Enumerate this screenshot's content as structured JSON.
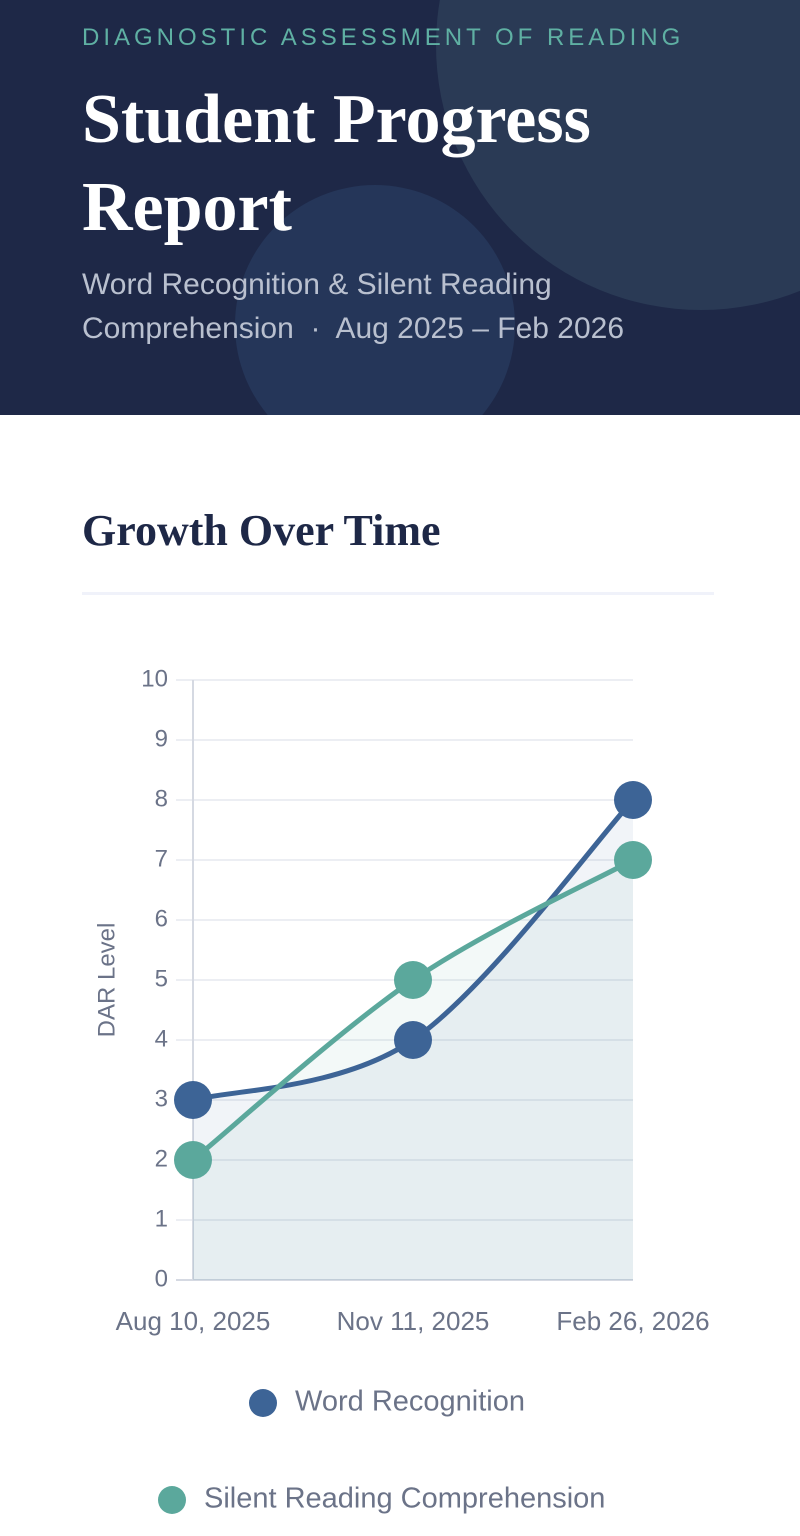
{
  "header": {
    "eyebrow": "DIAGNOSTIC ASSESSMENT OF READING",
    "title": "Student Progress Report",
    "subtitle": "Word Recognition & Silent Reading Comprehension  ·  Aug 2025 – Feb 2026"
  },
  "section": {
    "title": "Growth Over Time"
  },
  "chart_data": {
    "type": "line",
    "categories": [
      "Aug 10, 2025",
      "Nov 11, 2025",
      "Feb 26, 2026"
    ],
    "series": [
      {
        "name": "Word Recognition",
        "color": "#3d6496",
        "values": [
          3,
          4,
          8
        ]
      },
      {
        "name": "Silent Reading Comprehension",
        "color": "#5ba89c",
        "values": [
          2,
          5,
          7
        ]
      }
    ],
    "ylabel": "DAR Level",
    "ylim": [
      0,
      10
    ],
    "yticks": [
      0,
      1,
      2,
      3,
      4,
      5,
      6,
      7,
      8,
      9,
      10
    ],
    "grid": true
  }
}
